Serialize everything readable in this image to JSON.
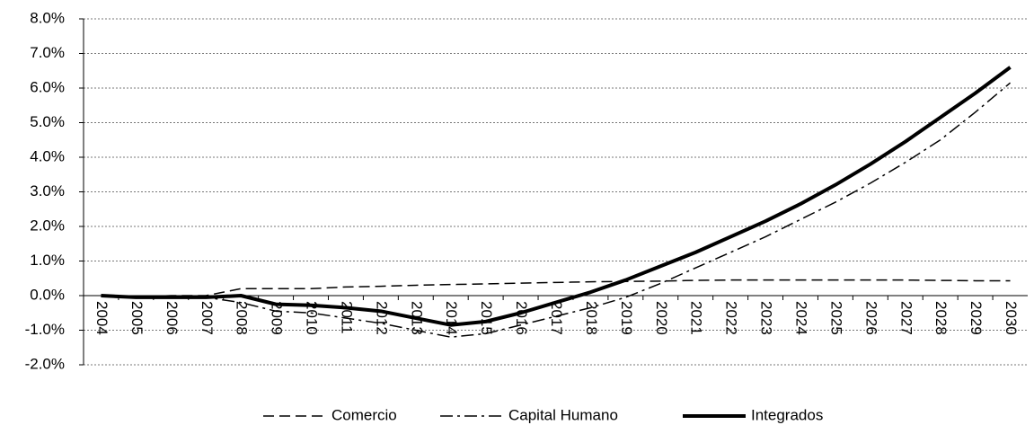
{
  "chart_data": {
    "type": "line",
    "categories": [
      "2004",
      "2005",
      "2006",
      "2007",
      "2008",
      "2009",
      "2010",
      "2011",
      "2012",
      "2013",
      "2014",
      "2015",
      "2016",
      "2017",
      "2018",
      "2019",
      "2020",
      "2021",
      "2022",
      "2023",
      "2024",
      "2025",
      "2026",
      "2027",
      "2028",
      "2029",
      "2030"
    ],
    "series": [
      {
        "name": "Comercio",
        "color": "#000000",
        "values": [
          0,
          -0.05,
          0,
          0,
          0.2,
          0.2,
          0.2,
          0.25,
          0.27,
          0.3,
          0.32,
          0.34,
          0.36,
          0.38,
          0.4,
          0.41,
          0.42,
          0.44,
          0.45,
          0.45,
          0.45,
          0.45,
          0.45,
          0.45,
          0.44,
          0.43,
          0.43
        ]
      },
      {
        "name": "Capital Humano",
        "color": "#000000",
        "values": [
          0,
          -0.05,
          -0.05,
          -0.05,
          -0.2,
          -0.45,
          -0.5,
          -0.65,
          -0.8,
          -1.0,
          -1.2,
          -1.1,
          -0.85,
          -0.6,
          -0.35,
          -0.05,
          0.35,
          0.8,
          1.25,
          1.7,
          2.2,
          2.7,
          3.25,
          3.85,
          4.5,
          5.3,
          6.15
        ]
      },
      {
        "name": "Integrados",
        "color": "#000000",
        "values": [
          0,
          -0.05,
          -0.05,
          -0.05,
          0,
          -0.25,
          -0.28,
          -0.35,
          -0.45,
          -0.65,
          -0.85,
          -0.75,
          -0.5,
          -0.2,
          0.1,
          0.45,
          0.85,
          1.25,
          1.7,
          2.15,
          2.65,
          3.2,
          3.8,
          4.45,
          5.15,
          5.85,
          6.6
        ]
      }
    ],
    "ylim": [
      -2,
      8
    ],
    "yticks": [
      {
        "value": -2,
        "label": "-2.0%"
      },
      {
        "value": -1,
        "label": "-1.0%"
      },
      {
        "value": 0,
        "label": "0.0%"
      },
      {
        "value": 1,
        "label": "1.0%"
      },
      {
        "value": 2,
        "label": "2.0%"
      },
      {
        "value": 3,
        "label": "3.0%"
      },
      {
        "value": 4,
        "label": "4.0%"
      },
      {
        "value": 5,
        "label": "5.0%"
      },
      {
        "value": 6,
        "label": "6.0%"
      },
      {
        "value": 7,
        "label": "7.0%"
      },
      {
        "value": 8,
        "label": "8.0%"
      }
    ],
    "grid": true,
    "legend": "bottom"
  }
}
